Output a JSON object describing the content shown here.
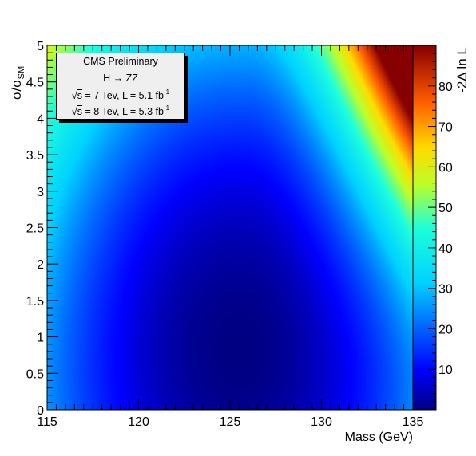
{
  "chart_data": {
    "type": "heatmap",
    "xlabel": "Mass (GeV)",
    "ylabel": "σ/σ",
    "ylabel_sub": "SM",
    "zlabel": "-2Δ ln L",
    "xlim": [
      115,
      135
    ],
    "ylim": [
      0,
      5
    ],
    "zlim": [
      0,
      90
    ],
    "x_ticks": [
      115,
      120,
      125,
      130,
      135
    ],
    "x_tick_labels": [
      "115",
      "120",
      "125",
      "130",
      "135"
    ],
    "y_ticks": [
      0,
      0.5,
      1,
      1.5,
      2,
      2.5,
      3,
      3.5,
      4,
      4.5,
      5
    ],
    "y_tick_labels": [
      "0",
      "0.5",
      "1",
      "1.5",
      "2",
      "2.5",
      "3",
      "3.5",
      "4",
      "4.5",
      "5"
    ],
    "z_ticks": [
      10,
      20,
      30,
      40,
      50,
      60,
      70,
      80
    ],
    "z_tick_labels": [
      "10",
      "20",
      "30",
      "40",
      "50",
      "60",
      "70",
      "80"
    ],
    "colormap": "jet",
    "minimum": {
      "x": 125.5,
      "y": 0.8,
      "z": 0
    },
    "surface_samples": [
      {
        "x": 115,
        "y": 0,
        "z": 8
      },
      {
        "x": 115,
        "y": 5,
        "z": 13
      },
      {
        "x": 125,
        "y": 1,
        "z": 0
      },
      {
        "x": 125,
        "y": 5,
        "z": 16
      },
      {
        "x": 130,
        "y": 5,
        "z": 45
      },
      {
        "x": 135,
        "y": 5,
        "z": 88
      },
      {
        "x": 135,
        "y": 0,
        "z": 10
      }
    ]
  },
  "legend": {
    "line1": "CMS Preliminary",
    "line2": "H → ZZ",
    "line3_sqrt": "s",
    "line3_rest": " = 7 Tev, L = 5.1 fb",
    "line3_sup": "-1",
    "line4_sqrt": "s",
    "line4_rest": " = 8 Tev, L = 5.3 fb",
    "line4_sup": "-1"
  }
}
